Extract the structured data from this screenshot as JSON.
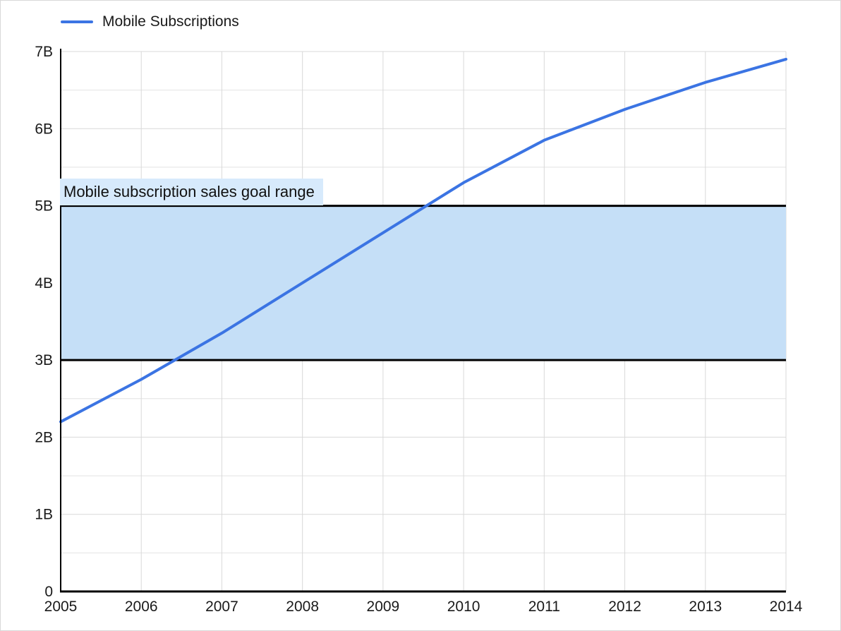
{
  "legend": {
    "label": "Mobile Subscriptions"
  },
  "annotation": {
    "band_label": "Mobile subscription sales goal range"
  },
  "colors": {
    "series_line": "#3b74e3",
    "band_fill": "#c5dff7",
    "band_border": "#000000",
    "band_label_bg": "#d7eafc",
    "grid_major": "#d9d9d9",
    "grid_minor": "#e7e7e7",
    "axis": "#000000",
    "text": "#1a1a1a"
  },
  "chart_data": {
    "type": "line",
    "title": "",
    "x": [
      2005,
      2006,
      2007,
      2008,
      2009,
      2010,
      2011,
      2012,
      2013,
      2014
    ],
    "x_labels": [
      "2005",
      "2006",
      "2007",
      "2008",
      "2009",
      "2010",
      "2011",
      "2012",
      "2013",
      "2014"
    ],
    "series": [
      {
        "name": "Mobile Subscriptions",
        "color": "#3b74e3",
        "values": [
          2.2,
          2.75,
          3.35,
          4.0,
          4.65,
          5.3,
          5.85,
          6.25,
          6.6,
          6.9
        ]
      }
    ],
    "ylim": [
      0,
      7
    ],
    "xlim": [
      2005,
      2014
    ],
    "y_ticks": [
      {
        "value": 0,
        "label": "0"
      },
      {
        "value": 1,
        "label": "1B"
      },
      {
        "value": 2,
        "label": "2B"
      },
      {
        "value": 3,
        "label": "3B"
      },
      {
        "value": 4,
        "label": "4B"
      },
      {
        "value": 5,
        "label": "5B"
      },
      {
        "value": 6,
        "label": "6B"
      },
      {
        "value": 7,
        "label": "7B"
      }
    ],
    "minor_grid_step": 0.5,
    "grid": "major+minor",
    "legend_position": "top-left",
    "annotation_band": {
      "label": "Mobile subscription sales goal range",
      "from": 3,
      "to": 5
    }
  }
}
